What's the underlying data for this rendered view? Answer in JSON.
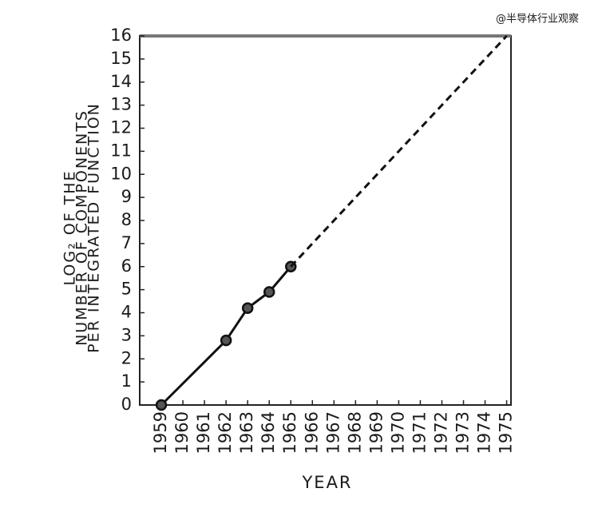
{
  "watermark": "@半导体行业观察",
  "chart_data": {
    "type": "line",
    "y_label": [
      "LOG₂ OF THE",
      "NUMBER OF COMPONENTS",
      "PER INTEGRATED FUNCTION"
    ],
    "x_label": "YEAR",
    "xlim": [
      1958,
      1975.2
    ],
    "xticks": [
      1959,
      1960,
      1961,
      1962,
      1963,
      1964,
      1965,
      1966,
      1967,
      1968,
      1969,
      1970,
      1971,
      1972,
      1973,
      1974,
      1975
    ],
    "ylim": [
      0,
      16
    ],
    "yticks": [
      0,
      1,
      2,
      3,
      4,
      5,
      6,
      7,
      8,
      9,
      10,
      11,
      12,
      13,
      14,
      15,
      16
    ],
    "grid": false,
    "series": [
      {
        "x": [
          1959,
          1962,
          1963,
          1964,
          1965
        ],
        "values": [
          0,
          2.8,
          4.2,
          4.9,
          6
        ],
        "color": "#111111",
        "style": "solid",
        "markers": true
      },
      {
        "x": [
          1965,
          1975
        ],
        "values": [
          6,
          16
        ],
        "color": "#111111",
        "style": "dashed",
        "markers": false
      }
    ]
  }
}
